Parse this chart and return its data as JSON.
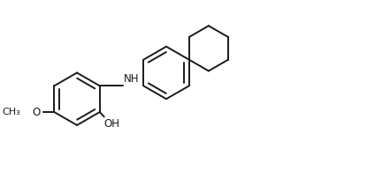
{
  "bg_color": "#ffffff",
  "line_color": "#1a1a1a",
  "line_width": 1.4,
  "text_color": "#1a1a1a",
  "font_size": 8.5,
  "figsize": [
    4.24,
    2.12
  ],
  "dpi": 100,
  "xlim": [
    0,
    10
  ],
  "ylim": [
    0,
    5
  ]
}
